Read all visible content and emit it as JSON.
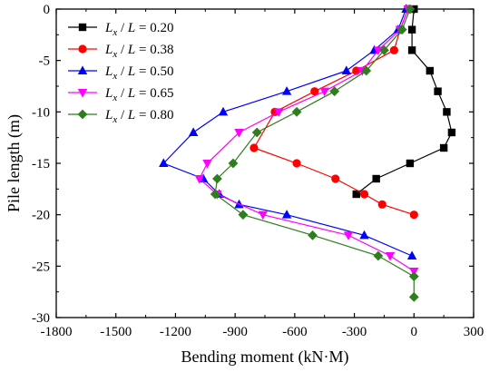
{
  "chart_data": {
    "type": "line",
    "xlabel": "Bending moment (kN·M)",
    "ylabel": "Pile length (m)",
    "xlim": [
      -1800,
      300
    ],
    "ylim": [
      -30,
      0
    ],
    "xticks": [
      -1800,
      -1500,
      -1200,
      -900,
      -600,
      -300,
      0,
      300
    ],
    "yticks": [
      0,
      -5,
      -10,
      -15,
      -20,
      -25,
      -30
    ],
    "grid": false,
    "legend_position": "top-left",
    "series": [
      {
        "name": "Lx / L = 0.20",
        "label_var": "L",
        "label_sub": "x",
        "label_rest": " / ",
        "label_var2": "L",
        "label_value": " = 0.20",
        "color": "#000000",
        "marker": "square",
        "points": [
          [
            0,
            0
          ],
          [
            -10,
            -2
          ],
          [
            -10,
            -4
          ],
          [
            80,
            -6
          ],
          [
            120,
            -8
          ],
          [
            165,
            -10
          ],
          [
            190,
            -12
          ],
          [
            150,
            -13.5
          ],
          [
            -20,
            -15
          ],
          [
            -190,
            -16.5
          ],
          [
            -290,
            -18
          ]
        ]
      },
      {
        "name": "Lx / L = 0.38",
        "label_var": "L",
        "label_sub": "x",
        "label_rest": " / ",
        "label_var2": "L",
        "label_value": " = 0.38",
        "color": "#ff0000",
        "marker": "circle",
        "points": [
          [
            -30,
            0
          ],
          [
            -70,
            -2
          ],
          [
            -100,
            -4
          ],
          [
            -290,
            -6
          ],
          [
            -500,
            -8
          ],
          [
            -700,
            -10
          ],
          [
            -805,
            -13.5
          ],
          [
            -590,
            -15
          ],
          [
            -395,
            -16.5
          ],
          [
            -250,
            -18
          ],
          [
            -160,
            -19
          ],
          [
            0,
            -20
          ]
        ]
      },
      {
        "name": "Lx / L = 0.50",
        "label_var": "L",
        "label_sub": "x",
        "label_rest": " / ",
        "label_var2": "L",
        "label_value": " = 0.50",
        "color": "#0000ff",
        "marker": "triangle-up",
        "points": [
          [
            -40,
            0
          ],
          [
            -80,
            -2
          ],
          [
            -200,
            -4
          ],
          [
            -340,
            -6
          ],
          [
            -640,
            -8
          ],
          [
            -960,
            -10
          ],
          [
            -1110,
            -12
          ],
          [
            -1260,
            -15
          ],
          [
            -1060,
            -16.5
          ],
          [
            -980,
            -18
          ],
          [
            -880,
            -19
          ],
          [
            -640,
            -20
          ],
          [
            -250,
            -22
          ],
          [
            -10,
            -24
          ]
        ]
      },
      {
        "name": "Lx / L = 0.65",
        "label_var": "L",
        "label_sub": "x",
        "label_rest": " / ",
        "label_var2": "L",
        "label_value": " = 0.65",
        "color": "#ff00ff",
        "marker": "triangle-down",
        "points": [
          [
            -30,
            0
          ],
          [
            -70,
            -2
          ],
          [
            -180,
            -4
          ],
          [
            -260,
            -6
          ],
          [
            -450,
            -8
          ],
          [
            -680,
            -10
          ],
          [
            -880,
            -12
          ],
          [
            -1040,
            -15
          ],
          [
            -1080,
            -16.5
          ],
          [
            -990,
            -18
          ],
          [
            -760,
            -20
          ],
          [
            -330,
            -22
          ],
          [
            -120,
            -24
          ],
          [
            0,
            -25.5
          ]
        ]
      },
      {
        "name": "Lx / L = 0.80",
        "label_var": "L",
        "label_sub": "x",
        "label_rest": " / ",
        "label_var2": "L",
        "label_value": " = 0.80",
        "color": "#2e7d1e",
        "marker": "diamond",
        "points": [
          [
            -20,
            0
          ],
          [
            -60,
            -2
          ],
          [
            -150,
            -4
          ],
          [
            -240,
            -6
          ],
          [
            -400,
            -8
          ],
          [
            -590,
            -10
          ],
          [
            -790,
            -12
          ],
          [
            -910,
            -15
          ],
          [
            -990,
            -16.5
          ],
          [
            -1000,
            -18
          ],
          [
            -860,
            -20
          ],
          [
            -510,
            -22
          ],
          [
            -180,
            -24
          ],
          [
            0,
            -26
          ],
          [
            0,
            -28
          ]
        ]
      }
    ]
  }
}
